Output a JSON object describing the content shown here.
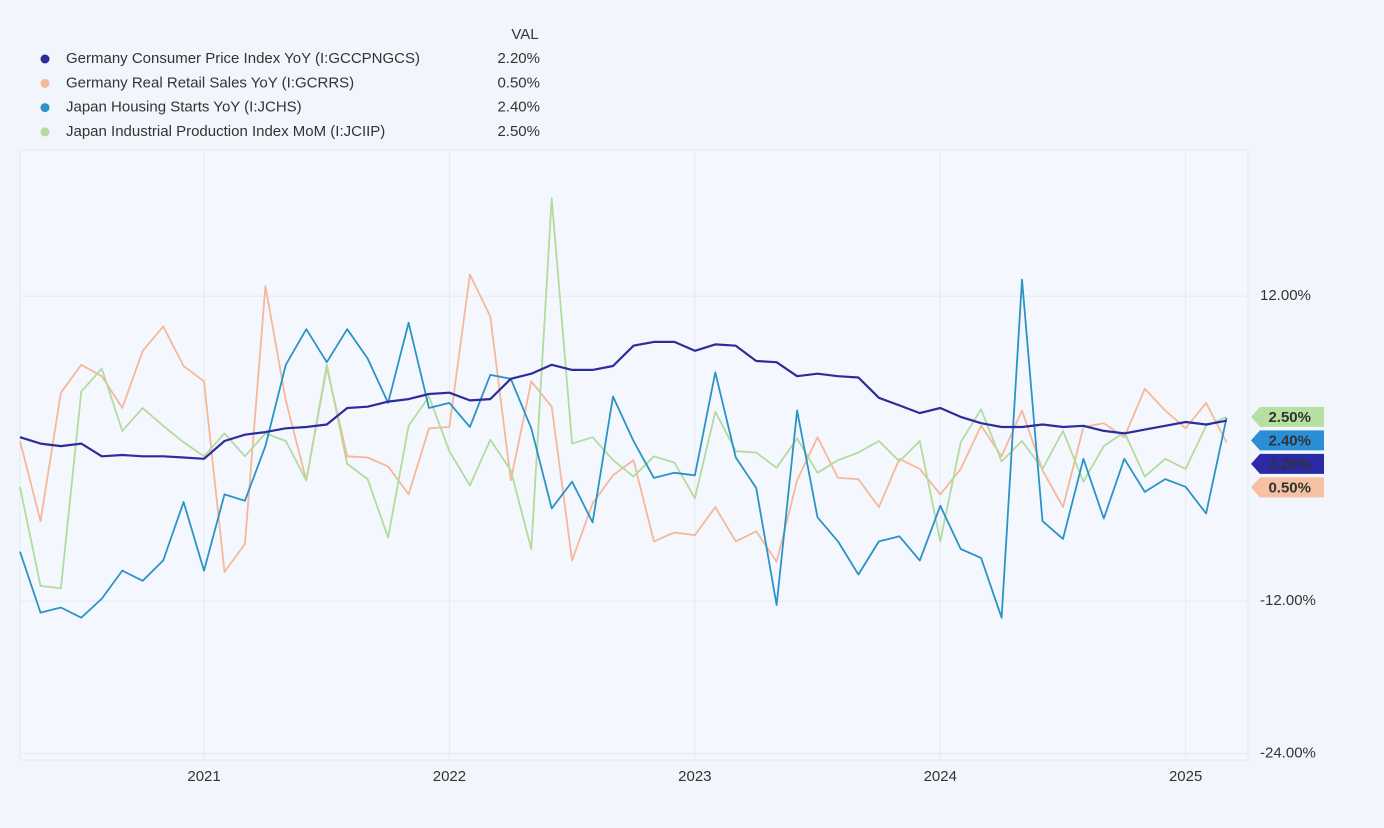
{
  "chart_data": {
    "type": "line",
    "legend_header": "VAL",
    "categories": [
      null,
      null,
      null,
      null,
      null,
      null,
      null,
      null,
      null,
      "2021",
      null,
      null,
      null,
      null,
      null,
      null,
      null,
      null,
      null,
      null,
      null,
      "2022",
      null,
      null,
      null,
      null,
      null,
      null,
      null,
      null,
      null,
      null,
      null,
      "2023",
      null,
      null,
      null,
      null,
      null,
      null,
      null,
      null,
      null,
      null,
      null,
      "2024",
      null,
      null,
      null,
      null,
      null,
      null,
      null,
      null,
      null,
      null,
      null,
      "2025",
      null,
      null
    ],
    "ylim": [
      -24.5,
      23.5
    ],
    "yticks": [
      {
        "value": 12,
        "label": "12.00%"
      },
      {
        "value": -12,
        "label": "-12.00%"
      },
      {
        "value": -24,
        "label": "-24.00%"
      }
    ],
    "grid": true,
    "series": [
      {
        "name": "Germany Consumer Price Index YoY (I:GCCPNGCS)",
        "color": "#2d2c9c",
        "tag_color": "#2b2aa6",
        "values": [
          0.9,
          0.4,
          0.2,
          0.4,
          -0.6,
          -0.5,
          -0.6,
          -0.6,
          -0.7,
          -0.8,
          0.6,
          1.1,
          1.3,
          1.6,
          1.7,
          1.9,
          3.2,
          3.3,
          3.7,
          3.9,
          4.3,
          4.4,
          3.8,
          3.9,
          5.5,
          5.9,
          6.6,
          6.2,
          6.2,
          6.5,
          8.1,
          8.4,
          8.4,
          7.7,
          8.2,
          8.1,
          6.9,
          6.8,
          5.7,
          5.9,
          5.7,
          5.6,
          4.0,
          3.4,
          2.8,
          3.2,
          2.5,
          2.0,
          1.7,
          1.7,
          1.9,
          1.7,
          1.8,
          1.4,
          1.2,
          1.5,
          1.8,
          2.1,
          1.9,
          2.2
        ],
        "value_labels": [
          null,
          null,
          null,
          null,
          null,
          null,
          null,
          null,
          null,
          null,
          null,
          null,
          null,
          null,
          null,
          null,
          null,
          null,
          null,
          null,
          null,
          null,
          null,
          null,
          null,
          null,
          null,
          null,
          null,
          null,
          null,
          null,
          null,
          null,
          null,
          null,
          null,
          null,
          null,
          null,
          null,
          null,
          null,
          null,
          null,
          null,
          null,
          null,
          null,
          null,
          null,
          null,
          null,
          null,
          null,
          null,
          null,
          null,
          null,
          "2.20%"
        ]
      },
      {
        "name": "Germany Real Retail Sales YoY (I:GCRRS)",
        "color": "#f5b898",
        "tag_color": "#f6c1a3",
        "values": [
          0.6,
          -5.7,
          4.4,
          6.6,
          5.7,
          3.2,
          7.7,
          9.6,
          6.5,
          5.3,
          -9.7,
          -7.5,
          12.8,
          3.8,
          -2.5,
          6.4,
          -0.6,
          -0.7,
          -1.4,
          -3.6,
          1.6,
          1.7,
          13.7,
          10.4,
          -2.5,
          5.3,
          3.3,
          -8.8,
          -4.3,
          -2.1,
          -0.9,
          -7.3,
          -6.6,
          -6.8,
          -4.6,
          -7.3,
          -6.5,
          -8.9,
          -2.5,
          0.9,
          -2.3,
          -2.4,
          -4.6,
          -0.8,
          -1.6,
          -3.6,
          -1.6,
          1.8,
          -0.6,
          3.0,
          -1.7,
          -4.6,
          1.7,
          2.0,
          0.9,
          4.7,
          3.0,
          1.6,
          3.6,
          0.5
        ],
        "value_labels": [
          null,
          null,
          null,
          null,
          null,
          null,
          null,
          null,
          null,
          null,
          null,
          null,
          null,
          null,
          null,
          null,
          null,
          null,
          null,
          null,
          null,
          null,
          null,
          null,
          null,
          null,
          null,
          null,
          null,
          null,
          null,
          null,
          null,
          null,
          null,
          null,
          null,
          null,
          null,
          null,
          null,
          null,
          null,
          null,
          null,
          null,
          null,
          null,
          null,
          null,
          null,
          null,
          null,
          null,
          null,
          null,
          null,
          null,
          null,
          "0.50%"
        ]
      },
      {
        "name": "Japan Housing Starts YoY (I:JCHS)",
        "color": "#2b93c6",
        "tag_color": "#2b8fd8",
        "values": [
          -8.1,
          -12.9,
          -12.5,
          -13.3,
          -11.8,
          -9.6,
          -10.4,
          -8.8,
          -4.2,
          -9.6,
          -3.6,
          -4.1,
          0.2,
          6.6,
          9.4,
          6.8,
          9.4,
          7.1,
          3.6,
          9.9,
          3.2,
          3.6,
          1.7,
          5.8,
          5.5,
          1.6,
          -4.7,
          -2.6,
          -5.8,
          4.1,
          0.6,
          -2.3,
          -1.9,
          -2.1,
          6.0,
          -0.7,
          -3.1,
          -12.3,
          3.0,
          -5.4,
          -7.3,
          -9.9,
          -7.3,
          -6.9,
          -8.8,
          -4.5,
          -7.9,
          -8.6,
          -13.3,
          13.3,
          -5.7,
          -7.1,
          -0.8,
          -5.5,
          -0.8,
          -3.4,
          -2.4,
          -3.0,
          -5.1,
          2.4
        ],
        "value_labels": [
          null,
          null,
          null,
          null,
          null,
          null,
          null,
          null,
          null,
          null,
          null,
          null,
          null,
          null,
          null,
          null,
          null,
          null,
          null,
          null,
          null,
          null,
          null,
          null,
          null,
          null,
          null,
          null,
          null,
          null,
          null,
          null,
          null,
          null,
          null,
          null,
          null,
          null,
          null,
          null,
          null,
          null,
          null,
          null,
          null,
          null,
          null,
          null,
          null,
          null,
          null,
          null,
          null,
          null,
          null,
          null,
          null,
          null,
          null,
          "2.40%"
        ]
      },
      {
        "name": "Japan Industrial Production Index MoM (I:JCIIP)",
        "color": "#b2dc9e",
        "tag_color": "#b6e0a2",
        "values": [
          -3.0,
          -10.8,
          -11.0,
          4.5,
          6.3,
          1.4,
          3.2,
          1.8,
          0.5,
          -0.6,
          1.2,
          -0.6,
          1.2,
          0.6,
          -2.5,
          6.6,
          -1.2,
          -2.4,
          -7.0,
          1.8,
          4.1,
          -0.2,
          -2.9,
          0.7,
          -1.7,
          -7.9,
          19.7,
          0.4,
          0.9,
          -0.9,
          -2.2,
          -0.6,
          -1.1,
          -3.9,
          2.9,
          -0.2,
          -0.3,
          -1.5,
          0.8,
          -1.9,
          -0.9,
          -0.3,
          0.6,
          -1.0,
          0.6,
          -7.3,
          0.5,
          3.1,
          -1.0,
          0.6,
          -1.6,
          1.4,
          -2.6,
          0.2,
          1.3,
          -2.2,
          -0.8,
          -1.6,
          1.8,
          2.5
        ],
        "value_labels": [
          null,
          null,
          null,
          null,
          null,
          null,
          null,
          null,
          null,
          null,
          null,
          null,
          null,
          null,
          null,
          null,
          null,
          null,
          null,
          null,
          null,
          null,
          null,
          null,
          null,
          null,
          null,
          null,
          null,
          null,
          null,
          null,
          null,
          null,
          null,
          null,
          null,
          null,
          null,
          null,
          null,
          null,
          null,
          null,
          null,
          null,
          null,
          null,
          null,
          null,
          null,
          null,
          null,
          null,
          null,
          null,
          null,
          null,
          null,
          "2.50%"
        ]
      }
    ]
  }
}
